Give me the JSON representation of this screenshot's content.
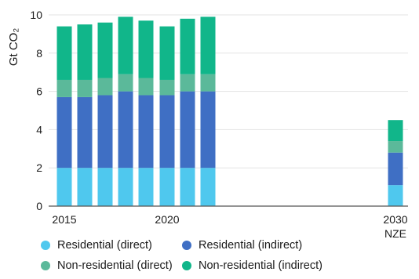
{
  "chart_data": {
    "type": "bar",
    "stacked": true,
    "categories": [
      "2015",
      "2016",
      "2017",
      "2018",
      "2019",
      "2020",
      "2021",
      "2022",
      "2030 NZE"
    ],
    "x_tick_labels": [
      {
        "category": "2015",
        "lines": [
          "2015"
        ]
      },
      {
        "category": "2020",
        "lines": [
          "2020"
        ]
      },
      {
        "category": "2030 NZE",
        "lines": [
          "2030",
          "NZE"
        ]
      }
    ],
    "ylabel": "Gt CO₂",
    "ylim": [
      0,
      10
    ],
    "yticks": [
      0,
      2,
      4,
      6,
      8,
      10
    ],
    "grid": true,
    "legend_position": "bottom",
    "series": [
      {
        "name": "Residential (direct)",
        "color": "#4FC8EE",
        "values": [
          2.0,
          2.0,
          2.0,
          2.0,
          2.0,
          2.0,
          2.0,
          2.0,
          1.1
        ]
      },
      {
        "name": "Residential (indirect)",
        "color": "#3F6FC4",
        "values": [
          3.7,
          3.7,
          3.8,
          4.0,
          3.8,
          3.8,
          4.0,
          4.0,
          1.7
        ]
      },
      {
        "name": "Non-residential (direct)",
        "color": "#5BB99A",
        "values": [
          0.9,
          0.9,
          0.9,
          0.9,
          0.9,
          0.8,
          0.9,
          0.9,
          0.6
        ]
      },
      {
        "name": "Non-residential (indirect)",
        "color": "#11B68A",
        "values": [
          2.8,
          2.9,
          2.9,
          3.0,
          3.0,
          2.8,
          2.9,
          3.0,
          1.1
        ]
      }
    ]
  }
}
